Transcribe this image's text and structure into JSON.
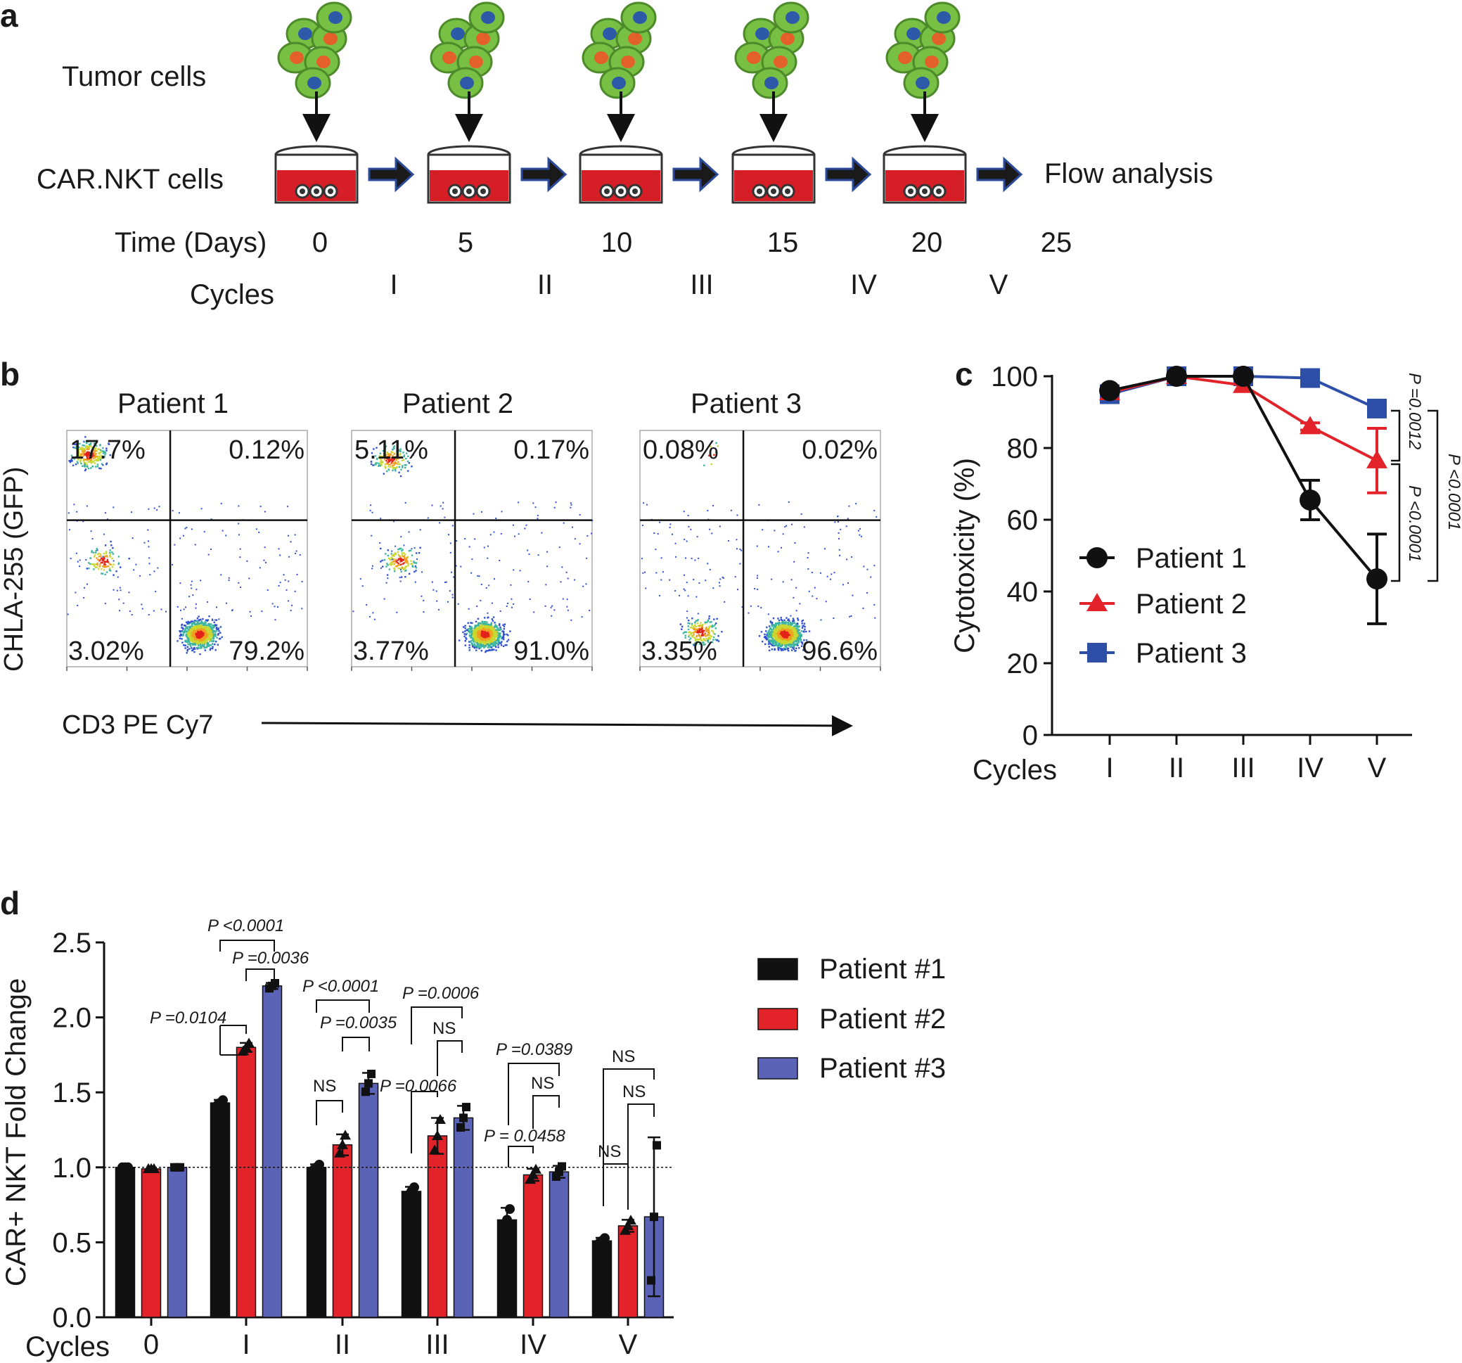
{
  "panel_a": {
    "letter": "a",
    "tumor_label": "Tumor cells",
    "car_label": "CAR.NKT cells",
    "time_label": "Time (Days)",
    "cycles_label": "Cycles",
    "flow_label": "Flow analysis",
    "days": [
      "0",
      "5",
      "10",
      "15",
      "20",
      "25"
    ],
    "cycles": [
      "I",
      "II",
      "III",
      "IV",
      "V"
    ]
  },
  "panel_b": {
    "letter": "b",
    "y_axis_label": "CHLA-255 (GFP)",
    "x_axis_label": "CD3 PE Cy7",
    "plots": [
      {
        "title": "Patient 1",
        "q_ul": "17.7%",
        "q_ur": "0.12%",
        "q_ll": "3.02%",
        "q_lr": "79.2%"
      },
      {
        "title": "Patient 2",
        "q_ul": "5.11%",
        "q_ur": "0.17%",
        "q_ll": "3.77%",
        "q_lr": "91.0%"
      },
      {
        "title": "Patient 3",
        "q_ul": "0.08%",
        "q_ur": "0.02%",
        "q_ll": "3.35%",
        "q_lr": "96.6%"
      }
    ]
  },
  "colors": {
    "p1": "#111111",
    "p2": "#e2232a",
    "p3": "#2e4fa8",
    "bar3": "#5a63b5",
    "green": "#78c043",
    "red": "#d51e26"
  },
  "chart_data": [
    {
      "panel": "c",
      "type": "line",
      "ylabel": "Cytotoxicity (%)",
      "xlabel": "Cycles",
      "ylim": [
        0,
        100
      ],
      "yticks": [
        "0",
        "20",
        "40",
        "60",
        "80",
        "100"
      ],
      "categories": [
        "I",
        "II",
        "III",
        "IV",
        "V"
      ],
      "series": [
        {
          "name": "Patient 1",
          "values": [
            96,
            100,
            100,
            65.5,
            43.5
          ],
          "errors": [
            0,
            0,
            0,
            5.5,
            12.5
          ]
        },
        {
          "name": "Patient 2",
          "values": [
            95.5,
            100,
            97.5,
            86,
            76.5
          ],
          "errors": [
            0,
            0,
            0,
            1,
            9
          ]
        },
        {
          "name": "Patient 3",
          "values": [
            95,
            100,
            100,
            99.5,
            91
          ],
          "errors": [
            0,
            0,
            0,
            0,
            0
          ]
        }
      ],
      "annotations": [
        "P =0.0012",
        "P <0.0001",
        "P <0.0001"
      ]
    },
    {
      "panel": "d",
      "type": "bar",
      "ylabel": "CAR+ NKT Fold Change",
      "xlabel": "Cycles",
      "ylim": [
        0,
        2.5
      ],
      "yticks": [
        "0.0",
        "0.5",
        "1.0",
        "1.5",
        "2.0",
        "2.5"
      ],
      "categories": [
        "0",
        "I",
        "II",
        "III",
        "IV",
        "V"
      ],
      "series": [
        {
          "name": "Patient #1",
          "values": [
            1.0,
            1.43,
            1.0,
            0.84,
            0.65,
            0.51
          ],
          "errors": [
            0,
            0.02,
            0.02,
            0.03,
            0.08,
            0.02
          ]
        },
        {
          "name": "Patient #2",
          "values": [
            0.99,
            1.8,
            1.15,
            1.21,
            0.95,
            0.61
          ],
          "errors": [
            0,
            0.03,
            0.07,
            0.12,
            0.04,
            0.04
          ]
        },
        {
          "name": "Patient #3",
          "values": [
            1.0,
            2.21,
            1.56,
            1.33,
            0.97,
            0.67
          ],
          "errors": [
            0,
            0.02,
            0.07,
            0.08,
            0.04,
            0.53
          ]
        }
      ],
      "reference_line": 1.0,
      "annotations": [
        "P <0.0001",
        "P =0.0036",
        "P =0.0104",
        "P <0.0001",
        "P =0.0035",
        "NS",
        "P =0.0006",
        "NS",
        "P =0.0066",
        "P =0.0389",
        "NS",
        "P = 0.0458",
        "NS",
        "NS",
        "NS"
      ]
    }
  ]
}
